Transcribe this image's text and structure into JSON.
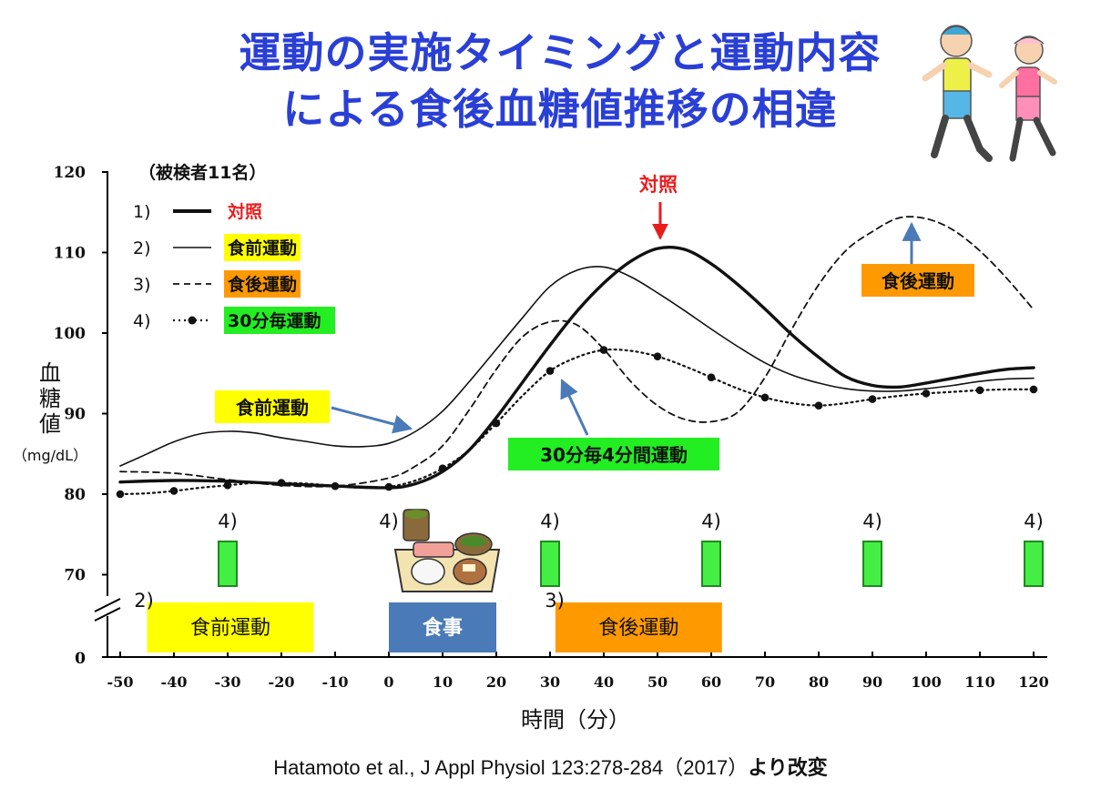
{
  "title": {
    "line1": "運動の実施タイミングと運動内容",
    "line2": "による食後血糖値推移の相違"
  },
  "citation": {
    "text": "Hatamoto et al., J Appl Physiol 123:278-284（2017）",
    "suffix": "より改変"
  },
  "chart_data": {
    "type": "line",
    "xlabel": "時間（分）",
    "ylabel_lines": [
      "血",
      "糖",
      "値"
    ],
    "yunit": "（mg/dL）",
    "x_ticks": [
      -50,
      -40,
      -30,
      -20,
      -10,
      0,
      10,
      20,
      30,
      40,
      50,
      60,
      70,
      80,
      90,
      100,
      110,
      120
    ],
    "y_ticks": [
      70,
      80,
      90,
      100,
      110,
      120
    ],
    "y_zero_tick": 0,
    "ylim": [
      70,
      120
    ],
    "xlim": [
      -52,
      122
    ],
    "axis_break": true,
    "subjects_note": "（被検者11名）",
    "legend": [
      {
        "num": "1)",
        "name": "対照",
        "style": "thick",
        "label_color": "#e81e1e",
        "bg": ""
      },
      {
        "num": "2)",
        "name": "食前運動",
        "style": "thin",
        "label_color": "#111111",
        "bg": "#ffff00"
      },
      {
        "num": "3)",
        "name": "食後運動",
        "style": "dashed",
        "label_color": "#111111",
        "bg": "#ff9900"
      },
      {
        "num": "4)",
        "name": "30分毎運動",
        "style": "dotted",
        "label_color": "#111111",
        "bg": "#22ee22"
      }
    ],
    "series": [
      {
        "name": "対照",
        "style": "thick",
        "x": [
          -50,
          -40,
          -30,
          -20,
          -10,
          0,
          5,
          10,
          15,
          20,
          25,
          30,
          35,
          40,
          45,
          50,
          55,
          60,
          65,
          70,
          75,
          80,
          85,
          90,
          95,
          100,
          105,
          110,
          115,
          120
        ],
        "y": [
          81.5,
          81.7,
          81.6,
          81.3,
          81.0,
          80.8,
          81.3,
          82.8,
          85.5,
          89.5,
          94.0,
          98.5,
          102.7,
          106.2,
          108.9,
          110.5,
          110.4,
          108.6,
          106.0,
          103.0,
          99.8,
          97.0,
          94.6,
          93.5,
          93.3,
          93.8,
          94.4,
          95.0,
          95.5,
          95.7
        ]
      },
      {
        "name": "食前運動",
        "style": "thin",
        "x": [
          -50,
          -45,
          -40,
          -35,
          -30,
          -25,
          -20,
          -15,
          -10,
          -5,
          0,
          5,
          10,
          15,
          20,
          25,
          30,
          35,
          40,
          45,
          50,
          55,
          60,
          65,
          70,
          75,
          80,
          85,
          90,
          95,
          100,
          105,
          110,
          115,
          120
        ],
        "y": [
          83.5,
          85.0,
          86.5,
          87.5,
          87.8,
          87.6,
          87.0,
          86.5,
          86.0,
          85.9,
          86.3,
          87.8,
          90.3,
          94.0,
          98.0,
          102.0,
          105.8,
          107.8,
          108.2,
          107.0,
          105.0,
          102.8,
          100.5,
          98.3,
          96.3,
          94.8,
          93.8,
          93.1,
          92.8,
          92.8,
          93.1,
          93.5,
          94.0,
          94.3,
          94.4
        ]
      },
      {
        "name": "食後運動",
        "style": "dashed",
        "x": [
          -50,
          -40,
          -30,
          -20,
          -10,
          0,
          5,
          10,
          15,
          20,
          25,
          30,
          35,
          40,
          45,
          50,
          55,
          60,
          65,
          70,
          75,
          80,
          85,
          90,
          95,
          100,
          105,
          110,
          115,
          120
        ],
        "y": [
          82.8,
          82.6,
          81.8,
          81.1,
          81.0,
          82.0,
          83.5,
          86.0,
          90.5,
          95.5,
          99.6,
          101.4,
          101.0,
          98.0,
          94.0,
          91.0,
          89.3,
          89.0,
          90.2,
          94.5,
          100.5,
          106.0,
          110.2,
          112.6,
          114.3,
          114.2,
          112.8,
          110.2,
          106.8,
          102.9
        ]
      },
      {
        "name": "30分毎運動",
        "style": "dotted",
        "x": [
          -50,
          -45,
          -40,
          -35,
          -30,
          -25,
          -20,
          -15,
          -10,
          -5,
          0,
          5,
          10,
          15,
          20,
          25,
          30,
          35,
          40,
          45,
          50,
          55,
          60,
          65,
          70,
          75,
          80,
          85,
          90,
          95,
          100,
          105,
          110,
          115,
          120
        ],
        "y": [
          80.0,
          80.1,
          80.4,
          80.8,
          81.1,
          81.4,
          81.4,
          81.3,
          81.0,
          80.8,
          80.9,
          81.7,
          83.2,
          85.5,
          88.8,
          92.3,
          95.3,
          97.0,
          97.9,
          97.8,
          97.1,
          95.9,
          94.5,
          93.1,
          92.0,
          91.3,
          91.0,
          91.3,
          91.8,
          92.2,
          92.5,
          92.7,
          92.9,
          93.0,
          93.0
        ]
      }
    ],
    "annotations": [
      {
        "text": "対照",
        "kind": "red",
        "color": "#e81e1e"
      },
      {
        "text": "食前運動",
        "kind": "box",
        "bg": "#ffff00"
      },
      {
        "text": "30分毎4分間運動",
        "kind": "box",
        "bg": "#22ee22"
      },
      {
        "text": "食後運動",
        "kind": "box",
        "bg": "#ff9900"
      }
    ],
    "intervals": [
      {
        "label": "4)",
        "x": -30
      },
      {
        "label": "4)",
        "x": 0
      },
      {
        "label": "4)",
        "x": 30
      },
      {
        "label": "4)",
        "x": 60
      },
      {
        "label": "4)",
        "x": 90
      },
      {
        "label": "4)",
        "x": 120
      }
    ],
    "timeline_bars": [
      {
        "label": "食前運動",
        "num": "2)",
        "x0": -45,
        "x1": -14,
        "bg": "#ffff00",
        "fg": "#111111"
      },
      {
        "label": "食事",
        "num": "",
        "x0": 0,
        "x1": 20,
        "bg": "#4a7ab8",
        "fg": "#ffffff"
      },
      {
        "label": "食後運動",
        "num": "3)",
        "x0": 31,
        "x1": 62,
        "bg": "#ff9900",
        "fg": "#111111"
      }
    ],
    "colors": {
      "title": "#2a3fd6",
      "arrow": "#4a7ab8",
      "red": "#e81e1e",
      "green_bar": "#44ee44"
    }
  }
}
